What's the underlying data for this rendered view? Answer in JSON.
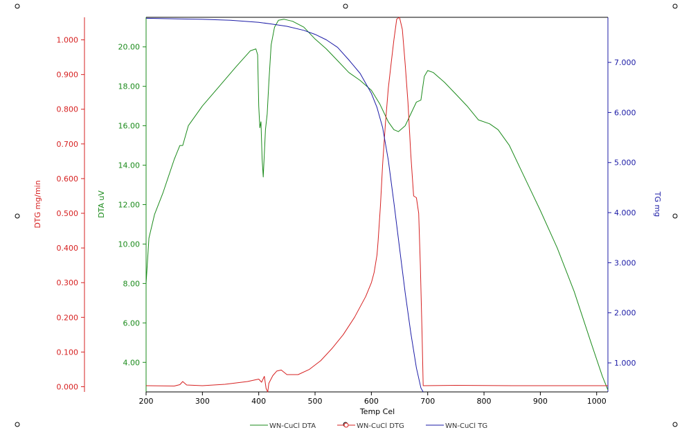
{
  "chart_data": {
    "type": "line",
    "xlabel": "Temp Cel",
    "xlim": [
      200,
      1020
    ],
    "x_ticks": [
      "200",
      "300",
      "400",
      "500",
      "600",
      "700",
      "800",
      "900",
      "1000"
    ],
    "axes": {
      "dtg": {
        "label": "DTG mg/min",
        "color": "#d62020",
        "min": -0.015,
        "max": 1.065,
        "ticks": [
          "0.000",
          "0.100",
          "0.200",
          "0.300",
          "0.400",
          "0.500",
          "0.600",
          "0.700",
          "0.800",
          "0.900",
          "1.000"
        ]
      },
      "dta": {
        "label": "DTA uV",
        "color": "#1a8a1a",
        "min": 2.5,
        "max": 21.5,
        "ticks": [
          "4.00",
          "6.00",
          "8.00",
          "10.00",
          "12.00",
          "14.00",
          "16.00",
          "18.00",
          "20.00"
        ]
      },
      "tg": {
        "label": "TG mg",
        "color": "#1a1aa6",
        "min": 0.42,
        "max": 7.9,
        "ticks": [
          "1.000",
          "2.000",
          "3.000",
          "4.000",
          "5.000",
          "6.000",
          "7.000"
        ]
      }
    },
    "series": [
      {
        "name": "WN-CuCl DTA",
        "axis": "dta",
        "color": "#1a8a1a",
        "points": [
          [
            200,
            8.0
          ],
          [
            205,
            10.3
          ],
          [
            215,
            11.5
          ],
          [
            230,
            12.6
          ],
          [
            250,
            14.3
          ],
          [
            260,
            15.0
          ],
          [
            265,
            15.0
          ],
          [
            275,
            16.0
          ],
          [
            300,
            17.0
          ],
          [
            330,
            18.0
          ],
          [
            360,
            19.0
          ],
          [
            385,
            19.8
          ],
          [
            395,
            19.9
          ],
          [
            398,
            19.6
          ],
          [
            400,
            17.0
          ],
          [
            402,
            15.9
          ],
          [
            404,
            16.2
          ],
          [
            406,
            14.3
          ],
          [
            408,
            13.4
          ],
          [
            410,
            14.6
          ],
          [
            412,
            15.8
          ],
          [
            415,
            16.6
          ],
          [
            418,
            18.2
          ],
          [
            422,
            20.1
          ],
          [
            428,
            21.0
          ],
          [
            435,
            21.35
          ],
          [
            445,
            21.4
          ],
          [
            460,
            21.3
          ],
          [
            480,
            21.0
          ],
          [
            500,
            20.4
          ],
          [
            520,
            19.9
          ],
          [
            540,
            19.3
          ],
          [
            560,
            18.7
          ],
          [
            580,
            18.3
          ],
          [
            600,
            17.8
          ],
          [
            615,
            17.1
          ],
          [
            630,
            16.2
          ],
          [
            640,
            15.8
          ],
          [
            648,
            15.7
          ],
          [
            660,
            16.0
          ],
          [
            670,
            16.6
          ],
          [
            680,
            17.2
          ],
          [
            688,
            17.3
          ],
          [
            694,
            18.5
          ],
          [
            700,
            18.8
          ],
          [
            710,
            18.7
          ],
          [
            730,
            18.2
          ],
          [
            750,
            17.6
          ],
          [
            770,
            17.0
          ],
          [
            790,
            16.3
          ],
          [
            810,
            16.1
          ],
          [
            825,
            15.8
          ],
          [
            845,
            15.0
          ],
          [
            870,
            13.5
          ],
          [
            900,
            11.7
          ],
          [
            930,
            9.8
          ],
          [
            960,
            7.6
          ],
          [
            990,
            5.0
          ],
          [
            1010,
            3.3
          ],
          [
            1020,
            2.6
          ]
        ]
      },
      {
        "name": "WN-CuCl DTG",
        "axis": "dtg",
        "color": "#d62020",
        "points": [
          [
            200,
            0.003
          ],
          [
            250,
            0.002
          ],
          [
            260,
            0.006
          ],
          [
            265,
            0.015
          ],
          [
            272,
            0.005
          ],
          [
            300,
            0.003
          ],
          [
            340,
            0.007
          ],
          [
            380,
            0.015
          ],
          [
            400,
            0.022
          ],
          [
            405,
            0.013
          ],
          [
            410,
            0.03
          ],
          [
            413,
            -0.005
          ],
          [
            416,
            -0.015
          ],
          [
            418,
            0.01
          ],
          [
            425,
            0.032
          ],
          [
            432,
            0.045
          ],
          [
            440,
            0.048
          ],
          [
            450,
            0.035
          ],
          [
            470,
            0.035
          ],
          [
            490,
            0.05
          ],
          [
            510,
            0.075
          ],
          [
            530,
            0.11
          ],
          [
            550,
            0.15
          ],
          [
            570,
            0.2
          ],
          [
            590,
            0.26
          ],
          [
            600,
            0.3
          ],
          [
            605,
            0.33
          ],
          [
            610,
            0.38
          ],
          [
            612,
            0.42
          ],
          [
            616,
            0.52
          ],
          [
            620,
            0.64
          ],
          [
            625,
            0.76
          ],
          [
            630,
            0.86
          ],
          [
            635,
            0.93
          ],
          [
            640,
            1.0
          ],
          [
            645,
            1.06
          ],
          [
            650,
            1.07
          ],
          [
            655,
            1.03
          ],
          [
            660,
            0.93
          ],
          [
            665,
            0.82
          ],
          [
            670,
            0.67
          ],
          [
            675,
            0.55
          ],
          [
            680,
            0.545
          ],
          [
            684,
            0.5
          ],
          [
            687,
            0.35
          ],
          [
            690,
            0.15
          ],
          [
            692,
            0.003
          ],
          [
            750,
            0.004
          ],
          [
            850,
            0.003
          ],
          [
            1020,
            0.003
          ]
        ]
      },
      {
        "name": "WN-CuCl TG",
        "axis": "tg",
        "color": "#1a1aa6",
        "points": [
          [
            200,
            7.88
          ],
          [
            300,
            7.86
          ],
          [
            350,
            7.84
          ],
          [
            400,
            7.8
          ],
          [
            420,
            7.77
          ],
          [
            450,
            7.72
          ],
          [
            480,
            7.64
          ],
          [
            500,
            7.56
          ],
          [
            520,
            7.45
          ],
          [
            540,
            7.3
          ],
          [
            560,
            7.05
          ],
          [
            580,
            6.78
          ],
          [
            600,
            6.38
          ],
          [
            610,
            6.1
          ],
          [
            620,
            5.7
          ],
          [
            630,
            5.05
          ],
          [
            640,
            4.2
          ],
          [
            650,
            3.3
          ],
          [
            660,
            2.4
          ],
          [
            670,
            1.6
          ],
          [
            680,
            0.9
          ],
          [
            688,
            0.5
          ],
          [
            692,
            0.42
          ]
        ]
      }
    ],
    "legend": {
      "placement": "bottom-center",
      "entries": [
        "WN-CuCl DTA",
        "WN-CuCl DTG",
        "WN-CuCl TG"
      ]
    },
    "grid": false
  }
}
